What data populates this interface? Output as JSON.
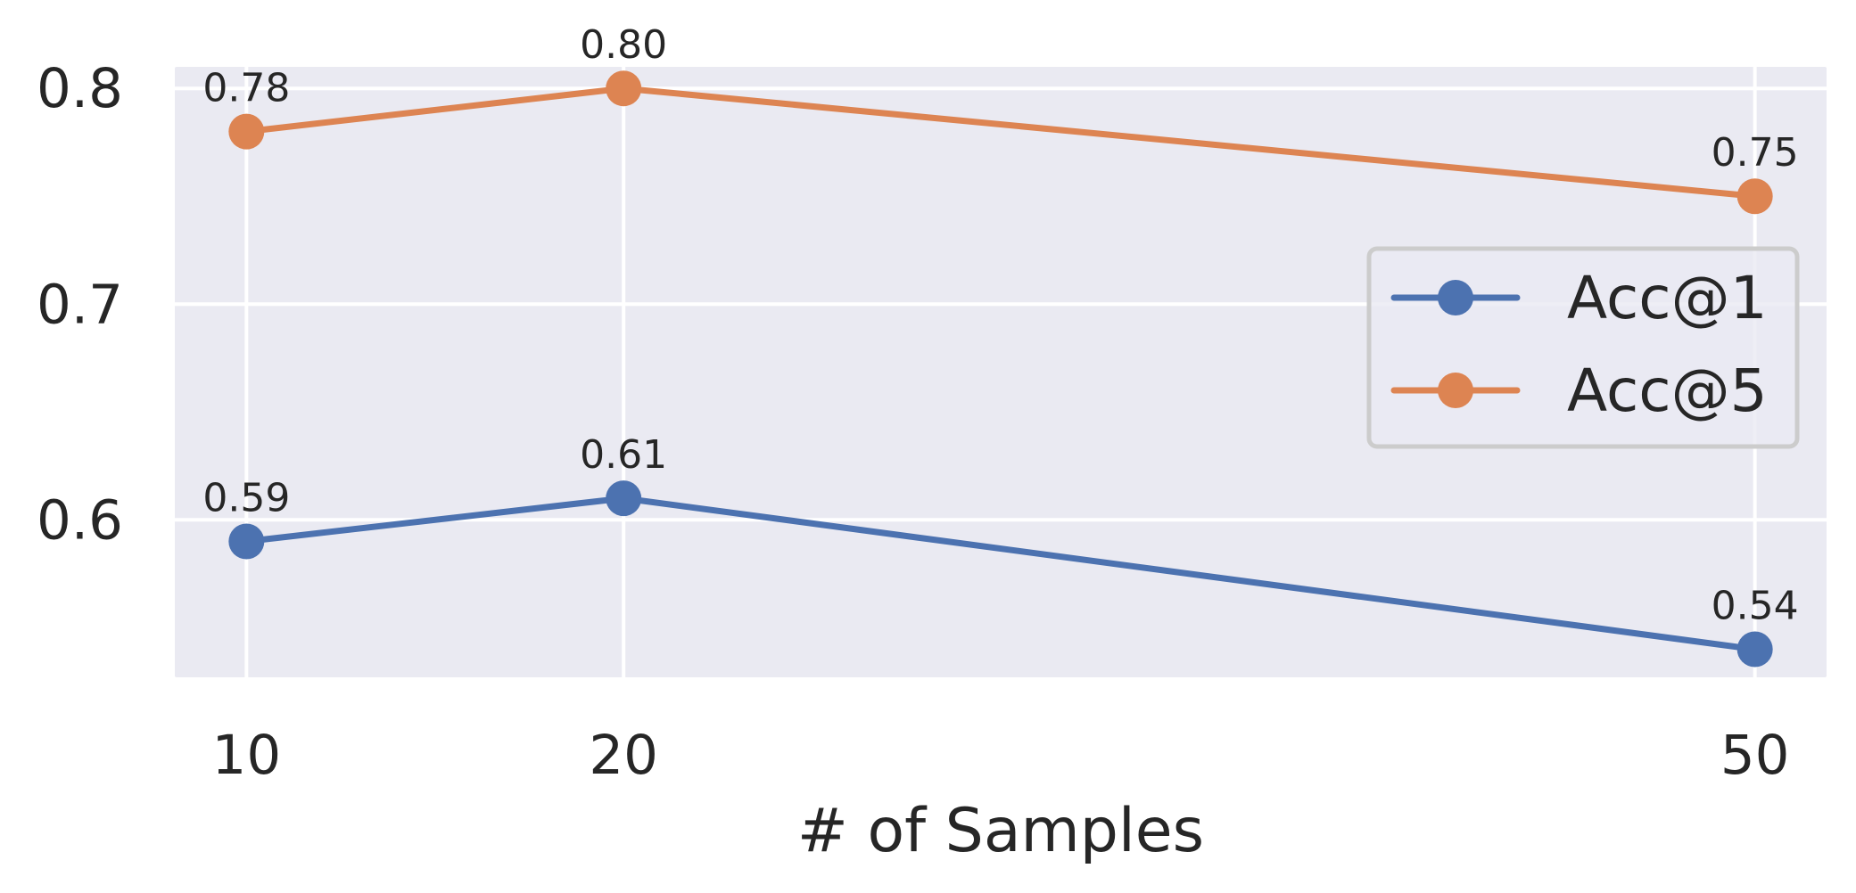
{
  "chart_data": {
    "type": "line",
    "title": "",
    "xlabel": "# of Samples",
    "ylabel": "",
    "x": [
      10,
      20,
      50
    ],
    "x_tick_labels": [
      "10",
      "20",
      "50"
    ],
    "xlim": [
      8.1,
      51.9
    ],
    "ylim": [
      0.527,
      0.81
    ],
    "y_ticks": [
      0.6,
      0.7,
      0.8
    ],
    "y_tick_labels": [
      "0.6",
      "0.7",
      "0.8"
    ],
    "grid": true,
    "legend_position": "center-right",
    "series": [
      {
        "name": "Acc@1",
        "values": [
          0.59,
          0.61,
          0.54
        ],
        "labels": [
          "0.59",
          "0.61",
          "0.54"
        ],
        "color": "#4c72b0"
      },
      {
        "name": "Acc@5",
        "values": [
          0.78,
          0.8,
          0.75
        ],
        "labels": [
          "0.78",
          "0.80",
          "0.75"
        ],
        "color": "#dd8452"
      }
    ],
    "background_color": "#eaeaf2",
    "grid_color": "#ffffff"
  }
}
